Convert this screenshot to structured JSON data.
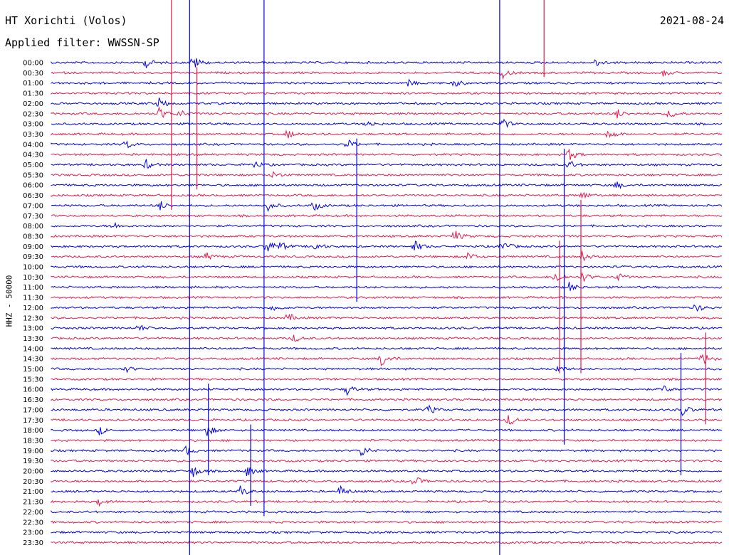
{
  "header": {
    "station": "HT Xorichti (Volos)",
    "date": "2021-08-24",
    "filter": "Applied filter: WWSSN-SP"
  },
  "chart_data": {
    "type": "line",
    "title": "HT Xorichti (Volos)",
    "ylabel": "HHZ - 50000",
    "row_labels": [
      "00:00",
      "00:30",
      "01:00",
      "01:30",
      "02:00",
      "02:30",
      "03:00",
      "03:30",
      "04:00",
      "04:30",
      "05:00",
      "05:30",
      "06:00",
      "06:30",
      "07:00",
      "07:30",
      "08:00",
      "08:30",
      "09:00",
      "09:30",
      "10:00",
      "10:30",
      "11:00",
      "11:30",
      "12:00",
      "12:30",
      "13:00",
      "13:30",
      "14:00",
      "14:30",
      "15:00",
      "15:30",
      "16:00",
      "16:30",
      "17:00",
      "17:30",
      "18:00",
      "18:30",
      "19:00",
      "19:30",
      "20:00",
      "20:30",
      "21:00",
      "21:30",
      "22:00",
      "22:30",
      "23:00",
      "23:30"
    ],
    "series_colors": [
      "#0000e6",
      "#e6194b"
    ],
    "events": [
      {
        "row": 0,
        "pos": 0.14,
        "amp": 8
      },
      {
        "row": 0,
        "pos": 0.21,
        "amp": 12
      },
      {
        "row": 0,
        "pos": 0.81,
        "amp": 7
      },
      {
        "row": 1,
        "pos": 0.67,
        "amp": 9
      },
      {
        "row": 1,
        "pos": 0.91,
        "amp": 5
      },
      {
        "row": 2,
        "pos": 0.53,
        "amp": 5
      },
      {
        "row": 2,
        "pos": 0.6,
        "amp": 6
      },
      {
        "row": 4,
        "pos": 0.16,
        "amp": 8
      },
      {
        "row": 5,
        "pos": 0.16,
        "amp": 10
      },
      {
        "row": 5,
        "pos": 0.19,
        "amp": 6
      },
      {
        "row": 5,
        "pos": 0.84,
        "amp": 9
      },
      {
        "row": 5,
        "pos": 0.92,
        "amp": 8
      },
      {
        "row": 6,
        "pos": 0.47,
        "amp": 5
      },
      {
        "row": 6,
        "pos": 0.67,
        "amp": 9
      },
      {
        "row": 7,
        "pos": 0.35,
        "amp": 8
      },
      {
        "row": 7,
        "pos": 0.83,
        "amp": 8
      },
      {
        "row": 8,
        "pos": 0.11,
        "amp": 7
      },
      {
        "row": 8,
        "pos": 0.44,
        "amp": 7
      },
      {
        "row": 9,
        "pos": 0.77,
        "amp": 10
      },
      {
        "row": 10,
        "pos": 0.14,
        "amp": 8
      },
      {
        "row": 10,
        "pos": 0.3,
        "amp": 6
      },
      {
        "row": 10,
        "pos": 0.77,
        "amp": 7
      },
      {
        "row": 11,
        "pos": 0.33,
        "amp": 6
      },
      {
        "row": 12,
        "pos": 0.84,
        "amp": 6
      },
      {
        "row": 13,
        "pos": 0.79,
        "amp": 6
      },
      {
        "row": 14,
        "pos": 0.16,
        "amp": 8
      },
      {
        "row": 14,
        "pos": 0.32,
        "amp": 9
      },
      {
        "row": 14,
        "pos": 0.39,
        "amp": 8
      },
      {
        "row": 16,
        "pos": 0.09,
        "amp": 6
      },
      {
        "row": 17,
        "pos": 0.6,
        "amp": 9
      },
      {
        "row": 18,
        "pos": 0.32,
        "amp": 12
      },
      {
        "row": 18,
        "pos": 0.34,
        "amp": 6
      },
      {
        "row": 18,
        "pos": 0.39,
        "amp": 8
      },
      {
        "row": 18,
        "pos": 0.54,
        "amp": 9
      },
      {
        "row": 18,
        "pos": 0.67,
        "amp": 10
      },
      {
        "row": 19,
        "pos": 0.23,
        "amp": 6
      },
      {
        "row": 19,
        "pos": 0.62,
        "amp": 7
      },
      {
        "row": 19,
        "pos": 0.79,
        "amp": 8
      },
      {
        "row": 21,
        "pos": 0.75,
        "amp": 10
      },
      {
        "row": 21,
        "pos": 0.79,
        "amp": 8
      },
      {
        "row": 21,
        "pos": 0.84,
        "amp": 8
      },
      {
        "row": 22,
        "pos": 0.77,
        "amp": 8
      },
      {
        "row": 24,
        "pos": 0.33,
        "amp": 6
      },
      {
        "row": 24,
        "pos": 0.96,
        "amp": 6
      },
      {
        "row": 25,
        "pos": 0.35,
        "amp": 8
      },
      {
        "row": 26,
        "pos": 0.13,
        "amp": 5
      },
      {
        "row": 27,
        "pos": 0.36,
        "amp": 6
      },
      {
        "row": 29,
        "pos": 0.49,
        "amp": 14
      },
      {
        "row": 29,
        "pos": 0.97,
        "amp": 10
      },
      {
        "row": 30,
        "pos": 0.11,
        "amp": 5
      },
      {
        "row": 30,
        "pos": 0.75,
        "amp": 7
      },
      {
        "row": 32,
        "pos": 0.44,
        "amp": 8
      },
      {
        "row": 32,
        "pos": 0.91,
        "amp": 7
      },
      {
        "row": 34,
        "pos": 0.56,
        "amp": 8
      },
      {
        "row": 34,
        "pos": 0.94,
        "amp": 8
      },
      {
        "row": 35,
        "pos": 0.68,
        "amp": 9
      },
      {
        "row": 36,
        "pos": 0.07,
        "amp": 7
      },
      {
        "row": 36,
        "pos": 0.23,
        "amp": 10
      },
      {
        "row": 38,
        "pos": 0.2,
        "amp": 7
      },
      {
        "row": 38,
        "pos": 0.46,
        "amp": 10
      },
      {
        "row": 40,
        "pos": 0.21,
        "amp": 10
      },
      {
        "row": 40,
        "pos": 0.29,
        "amp": 9
      },
      {
        "row": 41,
        "pos": 0.54,
        "amp": 8
      },
      {
        "row": 42,
        "pos": 0.28,
        "amp": 9
      },
      {
        "row": 42,
        "pos": 0.43,
        "amp": 8
      },
      {
        "row": 43,
        "pos": 0.07,
        "amp": 6
      }
    ],
    "spikes": [
      {
        "pos": 0.206,
        "row_start": 0,
        "row_end": 48,
        "color": "#0000e6"
      },
      {
        "pos": 0.317,
        "row_start": 0,
        "row_end": 44,
        "color": "#0000e6"
      },
      {
        "pos": 0.668,
        "row_start": 0,
        "row_end": 48,
        "color": "#0000e6"
      },
      {
        "pos": 0.179,
        "row_start": 0,
        "row_end": 14,
        "color": "#e6194b"
      },
      {
        "pos": 0.734,
        "row_start": 0,
        "row_end": 1,
        "color": "#e6194b"
      },
      {
        "pos": 0.764,
        "row_start": 9,
        "row_end": 37,
        "color": "#0000e6"
      },
      {
        "pos": 0.757,
        "row_start": 18,
        "row_end": 30,
        "color": "#e6194b"
      },
      {
        "pos": 0.455,
        "row_start": 8,
        "row_end": 23,
        "color": "#0000e6"
      },
      {
        "pos": 0.789,
        "row_start": 14,
        "row_end": 30,
        "color": "#e6194b"
      },
      {
        "pos": 0.975,
        "row_start": 27,
        "row_end": 35,
        "color": "#e6194b"
      },
      {
        "pos": 0.234,
        "row_start": 32,
        "row_end": 40,
        "color": "#0000e6"
      },
      {
        "pos": 0.297,
        "row_start": 36,
        "row_end": 43,
        "color": "#0000e6"
      },
      {
        "pos": 0.938,
        "row_start": 29,
        "row_end": 40,
        "color": "#0000e6"
      },
      {
        "pos": 0.217,
        "row_start": 1,
        "row_end": 12,
        "color": "#e6194b"
      }
    ]
  }
}
